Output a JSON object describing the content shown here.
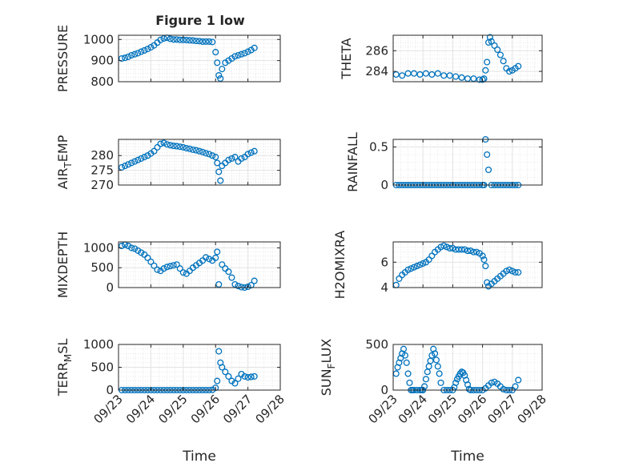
{
  "figure_title": "Figure 1 low",
  "colors": {
    "marker": "#0072BD",
    "grid": "#e3e3e3",
    "axis": "#262626"
  },
  "chart_data": [
    {
      "type": "scatter",
      "ylabel": "PRESSURE",
      "ylim": [
        800,
        1020
      ],
      "yticks": [
        800,
        900,
        1000
      ],
      "yticklabels": [
        "800",
        "900",
        "1000"
      ],
      "x": [
        0.1,
        0.2,
        0.3,
        0.4,
        0.5,
        0.6,
        0.7,
        0.8,
        0.9,
        1.0,
        1.1,
        1.2,
        1.3,
        1.4,
        1.5,
        1.6,
        1.7,
        1.8,
        1.9,
        2.0,
        2.1,
        2.2,
        2.3,
        2.4,
        2.5,
        2.6,
        2.7,
        2.8,
        2.9,
        3.0,
        3.05,
        3.1,
        3.15,
        3.2,
        3.3,
        3.4,
        3.5,
        3.6,
        3.7,
        3.8,
        3.9,
        4.0,
        4.1,
        4.2
      ],
      "values": [
        910,
        913,
        918,
        925,
        930,
        935,
        942,
        948,
        955,
        963,
        972,
        985,
        998,
        1005,
        1008,
        1003,
        1000,
        1000,
        998,
        998,
        997,
        996,
        995,
        993,
        992,
        990,
        990,
        990,
        988,
        940,
        890,
        830,
        815,
        860,
        890,
        900,
        910,
        920,
        925,
        930,
        935,
        942,
        950,
        960
      ]
    },
    {
      "type": "scatter",
      "ylabel": "THETA",
      "ylim": [
        283,
        287.5
      ],
      "yticks": [
        284,
        286
      ],
      "yticklabels": [
        "284",
        "286"
      ],
      "x": [
        0.1,
        0.3,
        0.5,
        0.7,
        0.9,
        1.1,
        1.3,
        1.5,
        1.7,
        1.9,
        2.1,
        2.3,
        2.5,
        2.7,
        2.9,
        3.0,
        3.05,
        3.1,
        3.15,
        3.2,
        3.25,
        3.3,
        3.4,
        3.5,
        3.6,
        3.7,
        3.8,
        3.9,
        4.0,
        4.1,
        4.2
      ],
      "values": [
        283.7,
        283.6,
        283.8,
        283.8,
        283.7,
        283.8,
        283.7,
        283.8,
        283.6,
        283.6,
        283.5,
        283.4,
        283.3,
        283.3,
        283.2,
        283.2,
        283.3,
        284.1,
        284.9,
        286.8,
        287.3,
        286.9,
        286.5,
        286.1,
        285.6,
        285.0,
        284.3,
        284.0,
        284.1,
        284.3,
        284.5
      ]
    },
    {
      "type": "scatter",
      "ylabel": "AIR",
      "ylabel_sub": "T",
      "ylabel_rest": "EMP",
      "ylim": [
        270,
        285.5
      ],
      "yticks": [
        270,
        275,
        280
      ],
      "yticklabels": [
        "270",
        "275",
        "280"
      ],
      "x": [
        0.1,
        0.2,
        0.3,
        0.4,
        0.5,
        0.6,
        0.7,
        0.8,
        0.9,
        1.0,
        1.1,
        1.2,
        1.3,
        1.4,
        1.5,
        1.6,
        1.7,
        1.8,
        1.9,
        2.0,
        2.1,
        2.2,
        2.3,
        2.4,
        2.5,
        2.6,
        2.7,
        2.8,
        2.9,
        3.0,
        3.05,
        3.1,
        3.15,
        3.2,
        3.3,
        3.4,
        3.5,
        3.6,
        3.7,
        3.8,
        3.9,
        4.0,
        4.1,
        4.2
      ],
      "values": [
        276,
        276.5,
        277,
        277.5,
        278,
        278.5,
        279,
        279.5,
        280,
        280.7,
        281.5,
        282.8,
        284,
        284.3,
        283.8,
        283.5,
        283.3,
        283.2,
        283,
        282.8,
        282.5,
        282.3,
        282,
        281.8,
        281.5,
        281.2,
        280.8,
        280.5,
        280,
        279.5,
        277.5,
        274.5,
        271.5,
        276.5,
        277.5,
        278.5,
        279,
        279.5,
        278,
        279,
        279.5,
        280.5,
        281,
        281.5
      ]
    },
    {
      "type": "scatter",
      "ylabel": "RAINFALL",
      "ylim": [
        0,
        0.6
      ],
      "yticks": [
        0,
        0.5
      ],
      "yticklabels": [
        "0",
        "0.5"
      ],
      "x": [
        0.1,
        0.2,
        0.3,
        0.4,
        0.5,
        0.6,
        0.7,
        0.8,
        0.9,
        1.0,
        1.1,
        1.2,
        1.3,
        1.4,
        1.5,
        1.6,
        1.7,
        1.8,
        1.9,
        2.0,
        2.1,
        2.2,
        2.3,
        2.4,
        2.5,
        2.6,
        2.7,
        2.8,
        2.9,
        3.0,
        3.05,
        3.1,
        3.15,
        3.2,
        3.3,
        3.4,
        3.5,
        3.6,
        3.7,
        3.8,
        3.9,
        4.0,
        4.1,
        4.2
      ],
      "values": [
        0,
        0,
        0,
        0,
        0,
        0,
        0,
        0,
        0,
        0,
        0,
        0,
        0,
        0,
        0,
        0,
        0,
        0,
        0,
        0,
        0,
        0,
        0,
        0,
        0,
        0,
        0,
        0,
        0,
        0,
        0,
        0.6,
        0.4,
        0.2,
        0,
        0,
        0,
        0,
        0,
        0,
        0,
        0,
        0,
        0
      ]
    },
    {
      "type": "scatter",
      "ylabel": "MIXDEPTH",
      "ylim": [
        0,
        1150
      ],
      "yticks": [
        0,
        500,
        1000
      ],
      "yticklabels": [
        "0",
        "500",
        "1000"
      ],
      "x": [
        0.1,
        0.2,
        0.3,
        0.4,
        0.5,
        0.6,
        0.7,
        0.8,
        0.9,
        1.0,
        1.1,
        1.2,
        1.3,
        1.4,
        1.5,
        1.6,
        1.7,
        1.8,
        1.9,
        2.0,
        2.1,
        2.2,
        2.3,
        2.4,
        2.5,
        2.6,
        2.7,
        2.8,
        2.9,
        3.0,
        3.05,
        3.1,
        3.2,
        3.3,
        3.4,
        3.5,
        3.6,
        3.7,
        3.8,
        3.9,
        4.0,
        4.1,
        4.2
      ],
      "values": [
        1050,
        1080,
        1050,
        1000,
        980,
        930,
        880,
        830,
        750,
        650,
        550,
        450,
        420,
        480,
        520,
        540,
        560,
        580,
        480,
        380,
        350,
        420,
        500,
        560,
        620,
        680,
        760,
        720,
        680,
        750,
        900,
        80,
        580,
        480,
        400,
        250,
        80,
        40,
        10,
        0,
        20,
        60,
        170
      ]
    },
    {
      "type": "scatter",
      "ylabel": "H2OMIXRA",
      "ylim": [
        4,
        7.6
      ],
      "yticks": [
        4,
        6
      ],
      "yticklabels": [
        "4",
        "6"
      ],
      "x": [
        0.1,
        0.2,
        0.3,
        0.4,
        0.5,
        0.6,
        0.7,
        0.8,
        0.9,
        1.0,
        1.1,
        1.2,
        1.3,
        1.4,
        1.5,
        1.6,
        1.7,
        1.8,
        1.9,
        2.0,
        2.1,
        2.2,
        2.3,
        2.4,
        2.5,
        2.6,
        2.7,
        2.8,
        2.9,
        3.0,
        3.05,
        3.1,
        3.15,
        3.2,
        3.3,
        3.4,
        3.5,
        3.6,
        3.7,
        3.8,
        3.9,
        4.0,
        4.1,
        4.2
      ],
      "values": [
        4.2,
        4.7,
        5.0,
        5.2,
        5.4,
        5.5,
        5.6,
        5.7,
        5.8,
        5.9,
        6.0,
        6.2,
        6.5,
        6.8,
        7.0,
        7.2,
        7.3,
        7.2,
        7.1,
        7.1,
        7.0,
        7.0,
        7.0,
        7.0,
        6.9,
        6.9,
        6.8,
        6.8,
        6.7,
        6.5,
        6.2,
        5.7,
        4.4,
        4.1,
        4.3,
        4.5,
        4.7,
        4.9,
        5.1,
        5.3,
        5.4,
        5.3,
        5.2,
        5.2
      ]
    },
    {
      "type": "scatter",
      "ylabel": "TERR",
      "ylabel_sub": "M",
      "ylabel_rest": "SL",
      "ylim": [
        0,
        1000
      ],
      "yticks": [
        0,
        500,
        1000
      ],
      "yticklabels": [
        "0",
        "500",
        "1000"
      ],
      "x": [
        0.1,
        0.2,
        0.3,
        0.4,
        0.5,
        0.6,
        0.7,
        0.8,
        0.9,
        1.0,
        1.1,
        1.2,
        1.3,
        1.4,
        1.5,
        1.6,
        1.7,
        1.8,
        1.9,
        2.0,
        2.1,
        2.2,
        2.3,
        2.4,
        2.5,
        2.6,
        2.7,
        2.8,
        2.9,
        3.0,
        3.05,
        3.1,
        3.15,
        3.2,
        3.3,
        3.4,
        3.5,
        3.6,
        3.7,
        3.8,
        3.9,
        4.0,
        4.1,
        4.2
      ],
      "values": [
        0,
        0,
        0,
        0,
        0,
        0,
        0,
        0,
        0,
        0,
        0,
        0,
        0,
        0,
        0,
        0,
        0,
        0,
        0,
        0,
        0,
        0,
        0,
        0,
        0,
        0,
        0,
        0,
        5,
        50,
        200,
        850,
        600,
        500,
        400,
        300,
        200,
        150,
        250,
        350,
        300,
        280,
        290,
        300
      ]
    },
    {
      "type": "scatter",
      "ylabel": "SUN",
      "ylabel_sub": "F",
      "ylabel_rest": "LUX",
      "ylim": [
        0,
        500
      ],
      "yticks": [
        0,
        500
      ],
      "yticklabels": [
        "0",
        "500"
      ],
      "x": [
        0.1,
        0.15,
        0.2,
        0.25,
        0.3,
        0.35,
        0.4,
        0.45,
        0.5,
        0.55,
        0.6,
        0.65,
        0.7,
        0.8,
        0.9,
        0.95,
        1.0,
        1.05,
        1.1,
        1.15,
        1.2,
        1.25,
        1.3,
        1.35,
        1.4,
        1.45,
        1.5,
        1.55,
        1.6,
        1.7,
        1.8,
        1.9,
        2.0,
        2.05,
        2.1,
        2.15,
        2.2,
        2.25,
        2.3,
        2.35,
        2.4,
        2.45,
        2.5,
        2.55,
        2.6,
        2.7,
        2.8,
        2.9,
        3.0,
        3.1,
        3.2,
        3.3,
        3.4,
        3.5,
        3.6,
        3.7,
        3.8,
        3.9,
        4.0,
        4.1,
        4.2
      ],
      "values": [
        180,
        250,
        300,
        350,
        400,
        450,
        380,
        300,
        180,
        80,
        0,
        0,
        0,
        0,
        0,
        0,
        0,
        40,
        120,
        200,
        260,
        320,
        380,
        450,
        400,
        330,
        260,
        180,
        80,
        0,
        0,
        0,
        0,
        30,
        80,
        120,
        150,
        180,
        200,
        190,
        160,
        110,
        60,
        10,
        0,
        0,
        0,
        0,
        0,
        20,
        50,
        80,
        90,
        70,
        40,
        10,
        0,
        0,
        0,
        40,
        110
      ]
    }
  ],
  "x_axis": {
    "range": [
      0,
      5
    ],
    "ticks": [
      0,
      1,
      2,
      3,
      4,
      5
    ],
    "ticklabels": [
      "09/23",
      "09/24",
      "09/25",
      "09/26",
      "09/27",
      "09/28"
    ],
    "label": "Time"
  }
}
